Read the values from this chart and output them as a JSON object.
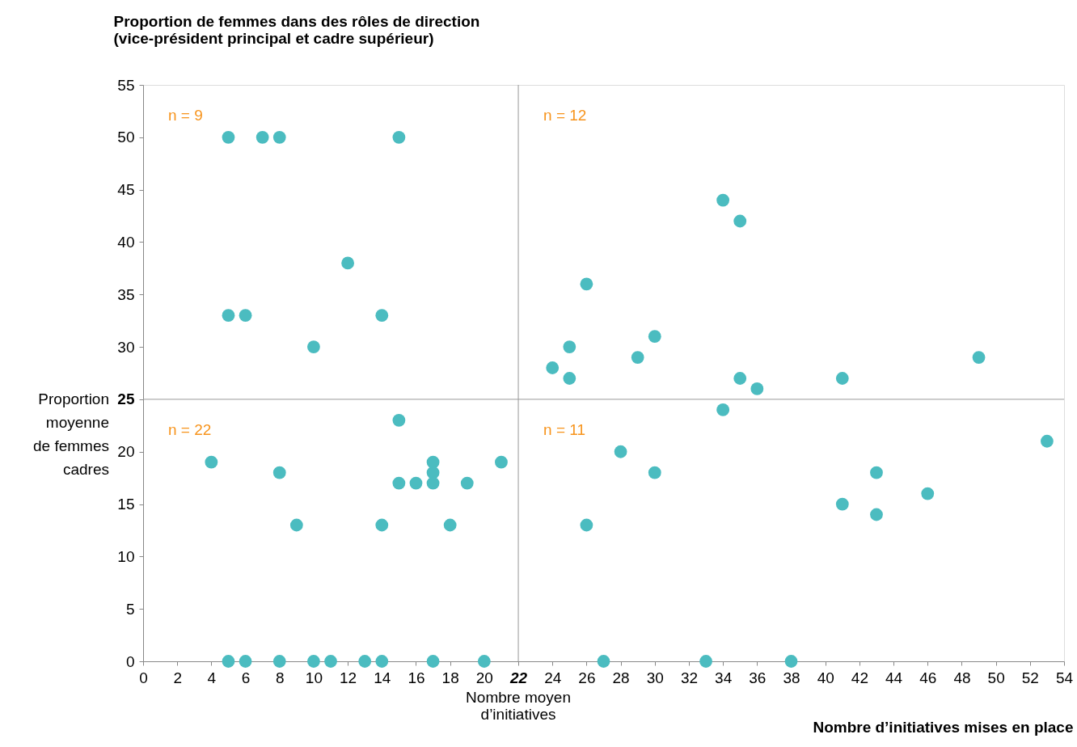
{
  "chart_data": {
    "type": "scatter",
    "ylabel": "Proportion de femmes dans des rôles de direction\n(vice-président principal et cadre supérieur)",
    "xlabel": "Nombre d’initiatives mises en place",
    "xlim": [
      0,
      54
    ],
    "ylim": [
      0,
      55
    ],
    "xticks": [
      0,
      2,
      4,
      6,
      8,
      10,
      12,
      14,
      16,
      18,
      20,
      22,
      24,
      26,
      28,
      30,
      32,
      34,
      36,
      38,
      40,
      42,
      44,
      46,
      48,
      50,
      52,
      54
    ],
    "yticks": [
      0,
      5,
      10,
      15,
      20,
      25,
      30,
      35,
      40,
      45,
      50,
      55
    ],
    "grid": false,
    "marker": "circle",
    "series": [
      {
        "color": "#4bbcc0",
        "x": [
          5,
          7,
          8,
          15,
          12,
          5,
          6,
          14,
          10,
          34,
          35,
          26,
          30,
          25,
          29,
          49,
          24,
          25,
          35,
          41,
          36,
          15,
          4,
          17,
          21,
          8,
          17,
          15,
          16,
          17,
          19,
          9,
          14,
          18,
          5,
          6,
          8,
          10,
          11,
          13,
          14,
          17,
          20,
          34,
          28,
          30,
          43,
          53,
          46,
          41,
          43,
          26,
          27,
          33,
          38
        ],
        "values": [
          50,
          50,
          50,
          50,
          38,
          33,
          33,
          33,
          30,
          44,
          42,
          36,
          31,
          30,
          29,
          29,
          28,
          27,
          27,
          27,
          26,
          23,
          19,
          19,
          19,
          18,
          18,
          17,
          17,
          17,
          17,
          13,
          13,
          13,
          0,
          0,
          0,
          0,
          0,
          0,
          0,
          0,
          0,
          24,
          20,
          18,
          18,
          21,
          16,
          15,
          14,
          13,
          0,
          0,
          0
        ]
      }
    ],
    "ref_lines": [
      {
        "axis": "x",
        "value": 22,
        "label": "Nombre moyen\nd’initiatives",
        "color": "#999999"
      },
      {
        "axis": "y",
        "value": 25,
        "label": "Proportion\nmoyenne\nde femmes\ncadres",
        "color": "#999999"
      }
    ],
    "annotations": [
      "n = 9",
      "n = 12",
      "n = 22",
      "n = 11"
    ]
  }
}
